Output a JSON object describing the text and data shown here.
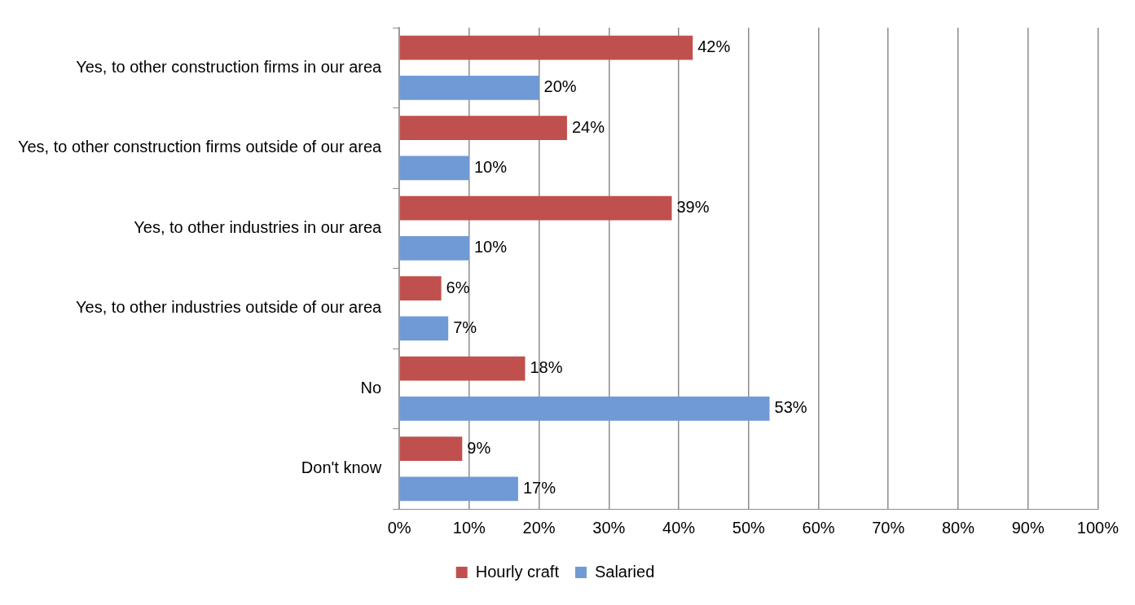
{
  "chart_data": {
    "type": "bar",
    "orientation": "horizontal",
    "categories": [
      "Yes, to other construction firms in our area",
      "Yes, to other construction firms outside of our area",
      "Yes, to other industries in our area",
      "Yes, to other industries outside of our area",
      "No",
      "Don't know"
    ],
    "series": [
      {
        "name": "Hourly craft",
        "color": "#c0504d",
        "values": [
          42,
          24,
          39,
          6,
          18,
          9
        ],
        "value_labels": [
          "42%",
          "24%",
          "39%",
          "6%",
          "18%",
          "9%"
        ]
      },
      {
        "name": "Salaried",
        "color": "#6f9ad6",
        "values": [
          20,
          10,
          10,
          7,
          53,
          17
        ],
        "value_labels": [
          "20%",
          "10%",
          "10%",
          "7%",
          "53%",
          "17%"
        ]
      }
    ],
    "xlim": [
      0,
      100
    ],
    "xticks": [
      {
        "value": 0,
        "label": "0%"
      },
      {
        "value": 10,
        "label": "10%"
      },
      {
        "value": 20,
        "label": "20%"
      },
      {
        "value": 30,
        "label": "30%"
      },
      {
        "value": 40,
        "label": "40%"
      },
      {
        "value": 50,
        "label": "50%"
      },
      {
        "value": 60,
        "label": "60%"
      },
      {
        "value": 70,
        "label": "70%"
      },
      {
        "value": 80,
        "label": "80%"
      },
      {
        "value": 90,
        "label": "90%"
      },
      {
        "value": 100,
        "label": "100%"
      }
    ],
    "grid": "x",
    "legend": "bottom"
  }
}
